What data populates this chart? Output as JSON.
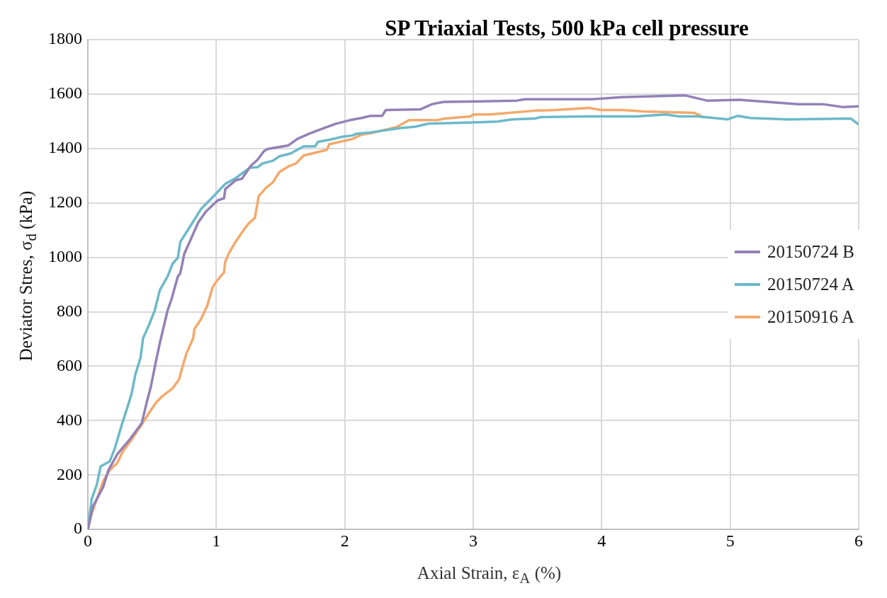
{
  "chart_data": {
    "type": "line",
    "title": "SP Triaxial Tests, 500 kPa cell pressure",
    "xlabel": "Axial Strain, ε$_{A}$  (%)",
    "ylabel": "Deviator Stres, σ$_{d}$  (kPa)",
    "xlim": [
      0,
      6
    ],
    "xticks": [
      0,
      1,
      2,
      3,
      4,
      5,
      6
    ],
    "ylim": [
      0,
      1800
    ],
    "yticks": [
      0,
      200,
      400,
      600,
      800,
      1000,
      1200,
      1400,
      1600,
      1800
    ],
    "grid": true,
    "legend": "right",
    "marker": "none",
    "line_style": "solid",
    "series": [
      {
        "name": "20150724 B",
        "color": "#9381b6",
        "x": [
          0,
          0.04,
          0.12,
          0.16,
          0.23,
          0.33,
          0.42,
          0.46,
          0.49,
          0.53,
          0.56,
          0.62,
          0.65,
          0.7,
          0.72,
          0.75,
          0.81,
          0.86,
          0.92,
          1.01,
          1.06,
          1.07,
          1.15,
          1.2,
          1.27,
          1.32,
          1.37,
          1.4,
          1.56,
          1.63,
          1.72,
          1.81,
          1.93,
          2.04,
          2.13,
          2.2,
          2.29,
          2.32,
          2.59,
          2.68,
          2.77,
          3.06,
          3.34,
          3.4,
          3.92,
          4.16,
          4.65,
          4.82,
          5.07,
          5.53,
          5.72,
          5.88,
          6.0
        ],
        "values": [
          0,
          85,
          157,
          218,
          277,
          333,
          391,
          471,
          524,
          618,
          684,
          804,
          844,
          929,
          942,
          1012,
          1076,
          1129,
          1169,
          1209,
          1217,
          1251,
          1283,
          1289,
          1337,
          1358,
          1390,
          1398,
          1411,
          1435,
          1454,
          1470,
          1491,
          1504,
          1512,
          1520,
          1520,
          1541,
          1544,
          1563,
          1571,
          1573,
          1576,
          1581,
          1581,
          1589,
          1595,
          1576,
          1579,
          1563,
          1563,
          1552,
          1555
        ]
      },
      {
        "name": "20150724 A",
        "color": "#6cb9c9",
        "x": [
          0,
          0.03,
          0.07,
          0.1,
          0.17,
          0.21,
          0.26,
          0.3,
          0.34,
          0.37,
          0.41,
          0.43,
          0.48,
          0.52,
          0.56,
          0.62,
          0.66,
          0.7,
          0.72,
          0.81,
          0.88,
          1.0,
          1.07,
          1.15,
          1.26,
          1.32,
          1.36,
          1.44,
          1.49,
          1.58,
          1.68,
          1.77,
          1.79,
          1.88,
          1.98,
          2.06,
          2.09,
          2.2,
          2.43,
          2.55,
          2.65,
          3.0,
          3.19,
          3.3,
          3.48,
          3.52,
          3.87,
          4.27,
          4.5,
          4.6,
          4.75,
          4.98,
          5.06,
          5.16,
          5.45,
          5.94,
          6.0
        ],
        "values": [
          0,
          112,
          165,
          232,
          250,
          298,
          378,
          437,
          498,
          570,
          631,
          703,
          756,
          804,
          879,
          929,
          977,
          998,
          1057,
          1124,
          1177,
          1235,
          1270,
          1291,
          1329,
          1331,
          1345,
          1355,
          1371,
          1382,
          1408,
          1408,
          1424,
          1432,
          1443,
          1448,
          1454,
          1459,
          1475,
          1480,
          1491,
          1496,
          1499,
          1507,
          1510,
          1515,
          1518,
          1518,
          1525,
          1518,
          1518,
          1507,
          1520,
          1512,
          1507,
          1510,
          1488
        ]
      },
      {
        "name": "20150916 A",
        "color": "#f4a96b",
        "x": [
          0,
          0.03,
          0.07,
          0.12,
          0.17,
          0.23,
          0.27,
          0.34,
          0.42,
          0.48,
          0.53,
          0.58,
          0.66,
          0.71,
          0.74,
          0.77,
          0.82,
          0.83,
          0.88,
          0.93,
          0.97,
          1.0,
          1.06,
          1.07,
          1.1,
          1.15,
          1.2,
          1.25,
          1.3,
          1.32,
          1.33,
          1.39,
          1.44,
          1.49,
          1.56,
          1.62,
          1.68,
          1.86,
          1.88,
          2.06,
          2.13,
          2.2,
          2.4,
          2.5,
          2.72,
          2.78,
          2.98,
          3.0,
          3.13,
          3.48,
          3.63,
          3.9,
          4.0,
          4.16,
          4.33,
          4.72,
          4.78
        ],
        "values": [
          0,
          59,
          112,
          178,
          218,
          245,
          285,
          330,
          386,
          431,
          466,
          490,
          519,
          551,
          604,
          650,
          703,
          737,
          772,
          823,
          889,
          911,
          945,
          985,
          1017,
          1057,
          1092,
          1124,
          1145,
          1198,
          1225,
          1257,
          1275,
          1313,
          1334,
          1345,
          1374,
          1395,
          1416,
          1435,
          1451,
          1456,
          1478,
          1504,
          1504,
          1510,
          1518,
          1525,
          1525,
          1539,
          1541,
          1549,
          1541,
          1541,
          1536,
          1531,
          1518
        ]
      }
    ]
  }
}
